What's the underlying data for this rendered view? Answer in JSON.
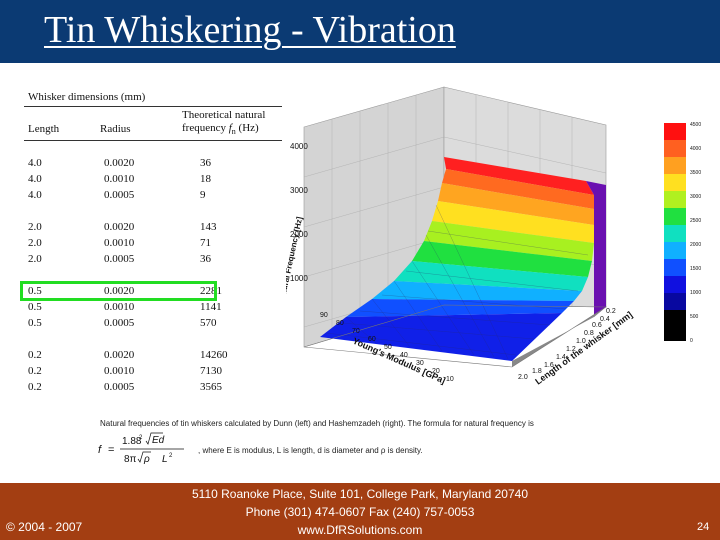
{
  "slide": {
    "title": "Tin Whiskering - Vibration"
  },
  "table": {
    "header_title": "Whisker dimensions (mm)",
    "header_length": "Length",
    "header_radius": "Radius",
    "header_freq_line1": "Theoretical natural",
    "header_freq_line2": "frequency",
    "header_freq_symbol": "f",
    "header_freq_sub": "n",
    "header_freq_unit": "(Hz)",
    "groups": [
      {
        "rows": [
          {
            "length": "4.0",
            "radius": "0.0020",
            "freq": "36"
          },
          {
            "length": "4.0",
            "radius": "0.0010",
            "freq": "18"
          },
          {
            "length": "4.0",
            "radius": "0.0005",
            "freq": "9"
          }
        ]
      },
      {
        "rows": [
          {
            "length": "2.0",
            "radius": "0.0020",
            "freq": "143"
          },
          {
            "length": "2.0",
            "radius": "0.0010",
            "freq": "71"
          },
          {
            "length": "2.0",
            "radius": "0.0005",
            "freq": "36"
          }
        ]
      },
      {
        "rows": [
          {
            "length": "0.5",
            "radius": "0.0020",
            "freq": "2281"
          },
          {
            "length": "0.5",
            "radius": "0.0010",
            "freq": "1141"
          },
          {
            "length": "0.5",
            "radius": "0.0005",
            "freq": "570"
          }
        ]
      },
      {
        "rows": [
          {
            "length": "0.2",
            "radius": "0.0020",
            "freq": "14260"
          },
          {
            "length": "0.2",
            "radius": "0.0010",
            "freq": "7130"
          },
          {
            "length": "0.2",
            "radius": "0.0005",
            "freq": "3565"
          }
        ]
      }
    ]
  },
  "chart": {
    "z_label": "Natural Frequency [Hz]",
    "z_ticks": [
      "1000",
      "2000",
      "3000",
      "4000"
    ],
    "x_label": "Young's Modulus [GPa]",
    "x_ticks": [
      "10",
      "20",
      "30",
      "40",
      "50",
      "60",
      "70",
      "80",
      "90"
    ],
    "y_label": "Length of the whisker [mm]",
    "y_ticks": [
      "0.2",
      "0.4",
      "0.6",
      "0.8",
      "1.0",
      "1.2",
      "1.4",
      "1.6",
      "1.8",
      "2.0"
    ],
    "colorbar_ticks": [
      "4500",
      "4000",
      "3500",
      "3000",
      "2500",
      "2000",
      "1500",
      "1000",
      "500",
      "0"
    ],
    "colorbar_colors": [
      "#ff1010",
      "#ff6020",
      "#ffa020",
      "#ffe020",
      "#b0f020",
      "#20e040",
      "#10e0c0",
      "#10b0ff",
      "#1050ff",
      "#1010e0",
      "#0808a0",
      "#000000"
    ]
  },
  "caption": {
    "line1": "Natural frequencies of tin whiskers calculated by Dunn (left) and Hashemzadeh (right). The formula for natural frequency is",
    "line2": ", where E is modulus, L is length, d is diameter and ρ is density.",
    "formula_f": "f",
    "formula_eq": "=",
    "formula_coef": "1.88",
    "formula_coef_exp": "2",
    "formula_sqrt_arg": "Ed",
    "formula_den_left": "8π",
    "formula_den_rho": "ρ",
    "formula_den_right": "L",
    "formula_den_right_exp": "2"
  },
  "footer": {
    "copyright": "© 2004 - 2007",
    "address_line1": "5110 Roanoke Place, Suite 101, College Park, Maryland 20740",
    "address_line2": "Phone (301) 474-0607  Fax (240) 757-0053",
    "address_line3": "www.DfRSolutions.com",
    "page_number": "24"
  }
}
